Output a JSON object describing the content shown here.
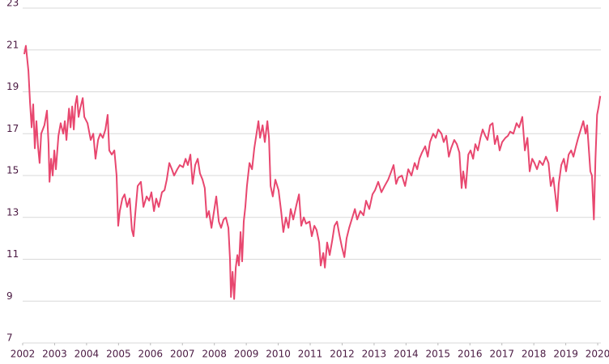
{
  "chart_data": {
    "type": "line",
    "color": "#e8476f",
    "grid": true,
    "xlim": [
      2002,
      2020.1
    ],
    "ylim": [
      7,
      23
    ],
    "xticks": [
      2002,
      2003,
      2004,
      2005,
      2006,
      2007,
      2008,
      2009,
      2010,
      2011,
      2012,
      2013,
      2014,
      2015,
      2016,
      2017,
      2018,
      2019,
      2020
    ],
    "yticks": [
      7,
      9,
      11,
      13,
      15,
      17,
      19,
      21,
      23
    ],
    "x": [
      2002.05,
      2002.1,
      2002.18,
      2002.23,
      2002.28,
      2002.33,
      2002.38,
      2002.43,
      2002.48,
      2002.53,
      2002.58,
      2002.68,
      2002.76,
      2002.81,
      2002.84,
      2002.89,
      2002.94,
      2002.99,
      2003.04,
      2003.12,
      2003.19,
      2003.27,
      2003.32,
      2003.37,
      2003.45,
      2003.5,
      2003.55,
      2003.6,
      2003.65,
      2003.7,
      2003.75,
      2003.8,
      2003.88,
      2003.93,
      2004.03,
      2004.13,
      2004.21,
      2004.28,
      2004.36,
      2004.43,
      2004.51,
      2004.59,
      2004.66,
      2004.71,
      2004.79,
      2004.87,
      2004.94,
      2004.99,
      2005.04,
      2005.12,
      2005.19,
      2005.27,
      2005.35,
      2005.42,
      2005.47,
      2005.52,
      2005.6,
      2005.7,
      2005.78,
      2005.88,
      2005.96,
      2006.03,
      2006.11,
      2006.18,
      2006.26,
      2006.36,
      2006.44,
      2006.51,
      2006.59,
      2006.67,
      2006.74,
      2006.84,
      2006.92,
      2007.02,
      2007.1,
      2007.17,
      2007.25,
      2007.32,
      2007.4,
      2007.48,
      2007.55,
      2007.63,
      2007.7,
      2007.76,
      2007.83,
      2007.91,
      2007.98,
      2008.06,
      2008.14,
      2008.21,
      2008.29,
      2008.36,
      2008.44,
      2008.49,
      2008.52,
      2008.57,
      2008.62,
      2008.67,
      2008.72,
      2008.77,
      2008.82,
      2008.87,
      2008.92,
      2008.97,
      2009.02,
      2009.1,
      2009.18,
      2009.25,
      2009.33,
      2009.38,
      2009.43,
      2009.51,
      2009.58,
      2009.66,
      2009.71,
      2009.76,
      2009.83,
      2009.91,
      2010.01,
      2010.09,
      2010.16,
      2010.24,
      2010.32,
      2010.39,
      2010.47,
      2010.57,
      2010.65,
      2010.72,
      2010.8,
      2010.87,
      2010.98,
      2011.05,
      2011.13,
      2011.2,
      2011.28,
      2011.33,
      2011.41,
      2011.46,
      2011.53,
      2011.61,
      2011.69,
      2011.76,
      2011.84,
      2011.91,
      2011.99,
      2012.07,
      2012.14,
      2012.22,
      2012.32,
      2012.4,
      2012.47,
      2012.57,
      2012.67,
      2012.75,
      2012.85,
      2012.95,
      2013.03,
      2013.13,
      2013.23,
      2013.33,
      2013.44,
      2013.54,
      2013.61,
      2013.69,
      2013.76,
      2013.87,
      2013.97,
      2014.07,
      2014.17,
      2014.27,
      2014.35,
      2014.42,
      2014.5,
      2014.6,
      2014.68,
      2014.75,
      2014.85,
      2014.93,
      2015.01,
      2015.11,
      2015.18,
      2015.26,
      2015.34,
      2015.41,
      2015.51,
      2015.59,
      2015.67,
      2015.74,
      2015.79,
      2015.87,
      2015.95,
      2016.02,
      2016.1,
      2016.17,
      2016.25,
      2016.33,
      2016.4,
      2016.48,
      2016.55,
      2016.63,
      2016.71,
      2016.78,
      2016.86,
      2016.93,
      2017.01,
      2017.11,
      2017.19,
      2017.26,
      2017.36,
      2017.46,
      2017.54,
      2017.64,
      2017.72,
      2017.8,
      2017.87,
      2017.95,
      2018.02,
      2018.1,
      2018.18,
      2018.28,
      2018.38,
      2018.46,
      2018.53,
      2018.61,
      2018.68,
      2018.73,
      2018.78,
      2018.86,
      2018.94,
      2019.01,
      2019.09,
      2019.17,
      2019.24,
      2019.32,
      2019.39,
      2019.47,
      2019.55,
      2019.62,
      2019.67,
      2019.72,
      2019.77,
      2019.82,
      2019.88,
      2019.93,
      2019.98,
      2020.03,
      2020.08
    ],
    "values": [
      20.8,
      21.2,
      20.0,
      18.5,
      17.3,
      18.4,
      16.3,
      17.6,
      16.4,
      15.6,
      17.0,
      17.4,
      18.1,
      16.5,
      14.7,
      15.8,
      15.0,
      16.2,
      15.3,
      16.9,
      17.5,
      17.0,
      17.6,
      16.7,
      18.2,
      17.3,
      18.3,
      17.2,
      18.4,
      18.8,
      17.8,
      18.2,
      18.7,
      17.8,
      17.5,
      16.7,
      17.0,
      15.8,
      16.7,
      17.0,
      16.8,
      17.2,
      17.9,
      16.2,
      16.0,
      16.2,
      15.0,
      12.6,
      13.3,
      13.9,
      14.1,
      13.5,
      13.9,
      12.4,
      12.1,
      13.1,
      14.5,
      14.7,
      13.5,
      14.0,
      13.8,
      14.2,
      13.3,
      13.9,
      13.5,
      14.2,
      14.3,
      14.8,
      15.6,
      15.3,
      15.0,
      15.3,
      15.5,
      15.4,
      15.8,
      15.5,
      16.0,
      14.6,
      15.5,
      15.8,
      15.1,
      14.8,
      14.4,
      13.0,
      13.3,
      12.5,
      13.2,
      14.0,
      12.8,
      12.5,
      12.9,
      13.0,
      12.5,
      11.0,
      9.2,
      10.4,
      9.1,
      10.6,
      11.2,
      10.7,
      12.3,
      10.9,
      12.8,
      13.5,
      14.5,
      15.6,
      15.3,
      16.3,
      17.1,
      17.6,
      16.8,
      17.4,
      16.6,
      17.6,
      16.8,
      14.5,
      14.0,
      14.8,
      14.3,
      13.3,
      12.3,
      13.0,
      12.5,
      13.4,
      12.9,
      13.6,
      14.1,
      12.6,
      13.0,
      12.7,
      12.8,
      12.1,
      12.6,
      12.4,
      11.8,
      10.7,
      11.3,
      10.6,
      11.8,
      11.2,
      11.9,
      12.6,
      12.8,
      12.2,
      11.6,
      11.1,
      12.0,
      12.5,
      13.0,
      13.4,
      12.9,
      13.3,
      13.1,
      13.8,
      13.4,
      14.1,
      14.3,
      14.7,
      14.2,
      14.5,
      14.8,
      15.2,
      15.5,
      14.6,
      14.9,
      15.0,
      14.5,
      15.3,
      15.0,
      15.6,
      15.3,
      15.8,
      16.1,
      16.4,
      15.9,
      16.6,
      17.0,
      16.8,
      17.2,
      17.0,
      16.6,
      16.9,
      15.9,
      16.3,
      16.7,
      16.5,
      16.1,
      14.4,
      15.2,
      14.4,
      16.0,
      16.2,
      15.8,
      16.5,
      16.2,
      16.8,
      17.2,
      16.9,
      16.7,
      17.4,
      17.5,
      16.5,
      16.9,
      16.2,
      16.6,
      16.8,
      16.9,
      17.1,
      17.0,
      17.5,
      17.3,
      17.8,
      16.2,
      16.8,
      15.2,
      15.8,
      15.6,
      15.3,
      15.7,
      15.5,
      15.9,
      15.6,
      14.5,
      14.9,
      14.0,
      13.3,
      14.6,
      15.5,
      15.8,
      15.2,
      16.0,
      16.2,
      15.9,
      16.4,
      16.8,
      17.2,
      17.6,
      17.0,
      17.4,
      16.3,
      15.2,
      15.0,
      12.9,
      15.8,
      17.9,
      18.3,
      18.8
    ]
  }
}
